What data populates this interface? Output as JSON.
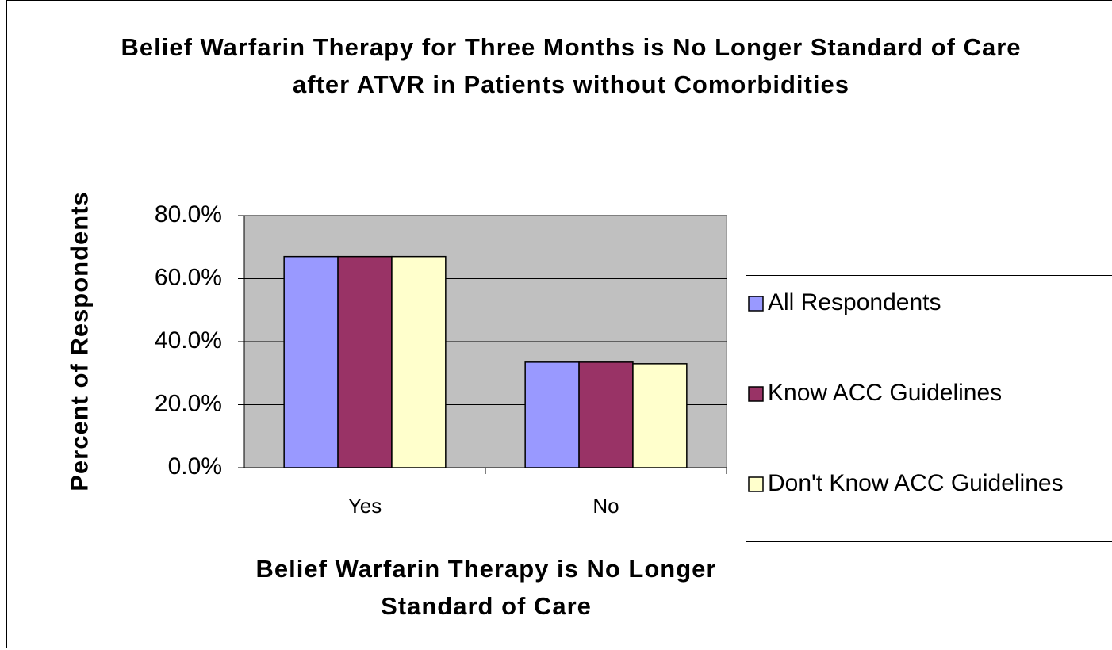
{
  "chart_data": {
    "type": "bar",
    "title": "Belief Warfarin Therapy for Three Months is No Longer Standard of Care after ATVR in Patients without Comorbidities",
    "x_label": "Belief Warfarin Therapy is No Longer Standard of Care",
    "y_label": "Percent of Respondents",
    "categories": [
      "Yes",
      "No"
    ],
    "series": [
      {
        "name": "All Respondents",
        "color": "#9999ff",
        "values": [
          67,
          33.5
        ]
      },
      {
        "name": "Know ACC Guidelines",
        "color": "#993366",
        "values": [
          67,
          33.5
        ]
      },
      {
        "name": "Don't Know ACC Guidelines",
        "color": "#ffffcc",
        "values": [
          67,
          33
        ]
      }
    ],
    "ylim": [
      0,
      80
    ],
    "yticks": [
      {
        "value": 0,
        "label": "0.0%"
      },
      {
        "value": 20,
        "label": "20.0%"
      },
      {
        "value": 40,
        "label": "40.0%"
      },
      {
        "value": 60,
        "label": "60.0%"
      },
      {
        "value": 80,
        "label": "80.0%"
      }
    ],
    "grid": true,
    "legend": "right"
  }
}
